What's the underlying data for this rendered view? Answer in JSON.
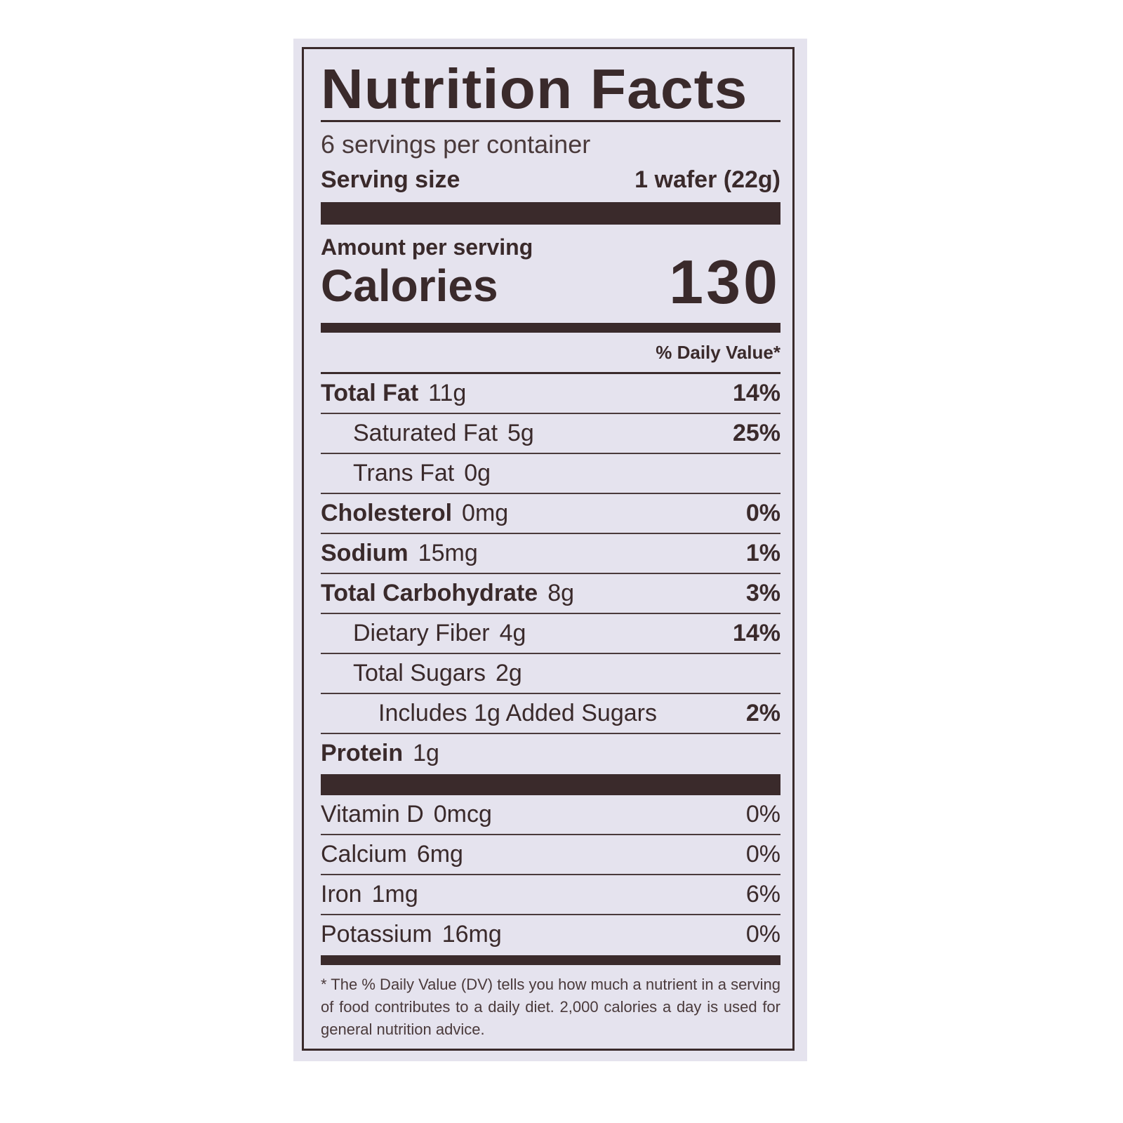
{
  "title": "Nutrition Facts",
  "servings": "6 servings per container",
  "serving_size": {
    "label": "Serving size",
    "value": "1 wafer (22g)"
  },
  "amount_per_serving": "Amount per serving",
  "calories": {
    "label": "Calories",
    "value": "130"
  },
  "dv_header": "% Daily Value*",
  "nutrients": [
    {
      "name": "Total Fat",
      "amount": "11g",
      "dv": "14%"
    },
    {
      "name": "Saturated Fat",
      "amount": "5g",
      "dv": "25%"
    },
    {
      "name": "Trans Fat",
      "amount": "0g",
      "dv": ""
    },
    {
      "name": "Cholesterol",
      "amount": "0mg",
      "dv": "0%"
    },
    {
      "name": "Sodium",
      "amount": "15mg",
      "dv": "1%"
    },
    {
      "name": "Total Carbohydrate",
      "amount": "8g",
      "dv": "3%"
    },
    {
      "name": "Dietary Fiber",
      "amount": "4g",
      "dv": "14%"
    },
    {
      "name": "Total Sugars",
      "amount": "2g",
      "dv": ""
    },
    {
      "name": "Includes 1g Added Sugars",
      "amount": "",
      "dv": "2%"
    },
    {
      "name": "Protein",
      "amount": "1g",
      "dv": ""
    }
  ],
  "vitamins": [
    {
      "name": "Vitamin D",
      "amount": "0mcg",
      "dv": "0%"
    },
    {
      "name": "Calcium",
      "amount": "6mg",
      "dv": "0%"
    },
    {
      "name": "Iron",
      "amount": "1mg",
      "dv": "6%"
    },
    {
      "name": "Potassium",
      "amount": "16mg",
      "dv": "0%"
    }
  ],
  "footnote": "* The % Daily Value (DV) tells you how much a nutrient in a serving of food contributes to a daily diet. 2,000 calories a day is used for general nutrition advice.",
  "colors": {
    "ink": "#3a2a2b",
    "panel": "#e5e3ee"
  }
}
